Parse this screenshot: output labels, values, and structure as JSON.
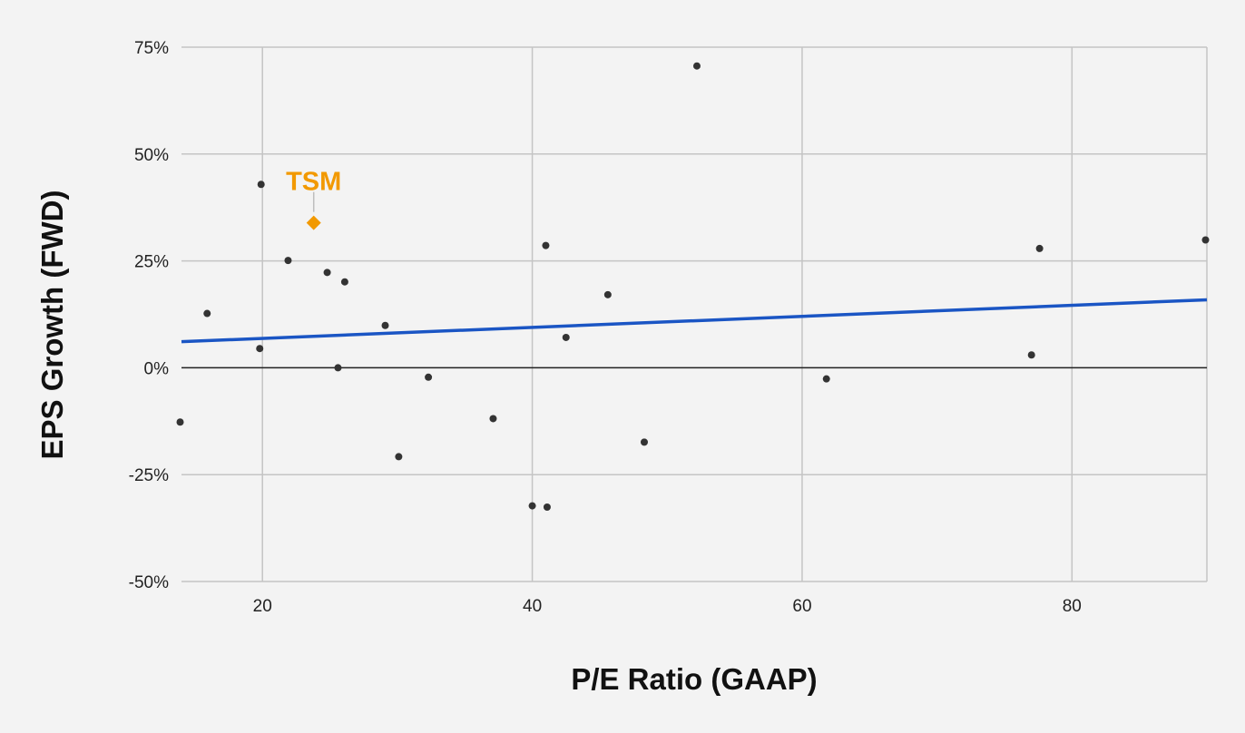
{
  "chart_data": {
    "type": "scatter",
    "title": "",
    "xlabel": "P/E Ratio (GAAP)",
    "ylabel": "EPS Growth (FWD)",
    "xlim": [
      14,
      90
    ],
    "ylim": [
      -50,
      75
    ],
    "x_ticks": [
      20,
      40,
      60,
      80
    ],
    "x_tick_labels": [
      "20",
      "40",
      "60",
      "80"
    ],
    "y_ticks": [
      -50,
      -25,
      0,
      25,
      50,
      75
    ],
    "y_tick_labels": [
      "-50%",
      "-25%",
      "0%",
      "25%",
      "50%",
      "75%"
    ],
    "grid": true,
    "legend": "none",
    "series": [
      {
        "color": "#333333",
        "marker": "circle",
        "points": [
          {
            "x": 13.9,
            "y": -12.7
          },
          {
            "x": 15.9,
            "y": 12.7
          },
          {
            "x": 19.8,
            "y": 4.5
          },
          {
            "x": 19.9,
            "y": 42.9
          },
          {
            "x": 21.9,
            "y": 25.1
          },
          {
            "x": 24.8,
            "y": 22.3
          },
          {
            "x": 25.6,
            "y": 0.0
          },
          {
            "x": 26.1,
            "y": 20.1
          },
          {
            "x": 29.1,
            "y": 9.9
          },
          {
            "x": 30.1,
            "y": -20.8
          },
          {
            "x": 32.3,
            "y": -2.2
          },
          {
            "x": 37.1,
            "y": -11.9
          },
          {
            "x": 40.0,
            "y": -32.3
          },
          {
            "x": 41.0,
            "y": 28.6
          },
          {
            "x": 41.1,
            "y": -32.6
          },
          {
            "x": 42.5,
            "y": 7.1
          },
          {
            "x": 45.6,
            "y": 17.1
          },
          {
            "x": 48.3,
            "y": -17.4
          },
          {
            "x": 52.2,
            "y": 70.6
          },
          {
            "x": 61.8,
            "y": -2.6
          },
          {
            "x": 77.0,
            "y": 3.0
          },
          {
            "x": 77.6,
            "y": 27.9
          },
          {
            "x": 89.9,
            "y": 29.9
          }
        ]
      },
      {
        "color": "#f29900",
        "marker": "diamond",
        "points": [
          {
            "x": 23.8,
            "y": 33.9
          }
        ]
      }
    ],
    "trendline": {
      "color": "#1a55c4",
      "points": [
        {
          "x": 14,
          "y": 6.1
        },
        {
          "x": 90,
          "y": 15.9
        }
      ]
    },
    "annotations": [
      {
        "text": "TSM",
        "x": 23.8,
        "y": 33.9,
        "color": "#f29900"
      }
    ],
    "colors": {
      "background": "#f3f3f3",
      "grid": "#c4c4c4",
      "zero_line": "#222222"
    }
  }
}
